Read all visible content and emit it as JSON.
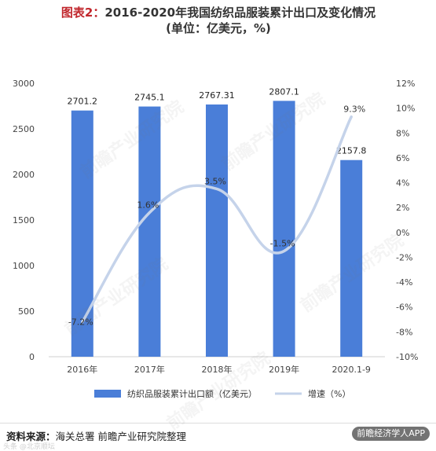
{
  "header": {
    "title_prefix": "图表2：",
    "title_main": "2016-2020年我国纺织品服装累计出口及变化情况",
    "title_unit": "(单位：亿美元，%)"
  },
  "footer": {
    "source_label": "资料来源：",
    "source_text": "海关总署  前瞻产业研究院整理",
    "badge_text": "前瞻经济学人APP",
    "corner_mark": "头条 @北京顺坛"
  },
  "watermark": {
    "text": "前瞻产业研究院"
  },
  "chart_data": {
    "type": "bar+line",
    "categories": [
      "2016年",
      "2017年",
      "2018年",
      "2019年",
      "2020.1-9"
    ],
    "series": [
      {
        "name": "纺织品服装累计出口额（亿美元）",
        "type": "bar",
        "axis": "left",
        "values": [
          2701.2,
          2745.1,
          2767.31,
          2807.1,
          2157.8
        ],
        "labels": [
          "2701.2",
          "2745.1",
          "2767.31",
          "2807.1",
          "2157.8"
        ],
        "color": "#4a7ed8"
      },
      {
        "name": "增速（%）",
        "type": "line",
        "axis": "right",
        "values": [
          -7.2,
          1.6,
          3.5,
          -1.5,
          9.3
        ],
        "labels": [
          "-7.2%",
          "1.6%",
          "3.5%",
          "-1.5%",
          "9.3%"
        ],
        "color": "#c5d3ea"
      }
    ],
    "y_left": {
      "ylim": [
        0,
        3000
      ],
      "ticks": [
        0,
        500,
        1000,
        1500,
        2000,
        2500,
        3000
      ],
      "tick_labels": [
        "0",
        "500",
        "1000",
        "1500",
        "2000",
        "2500",
        "3000"
      ]
    },
    "y_right": {
      "ylim": [
        -10,
        12
      ],
      "ticks": [
        -10,
        -8,
        -6,
        -4,
        -2,
        0,
        2,
        4,
        6,
        8,
        10,
        12
      ],
      "tick_labels": [
        "-10%",
        "-8%",
        "-6%",
        "-4%",
        "-2%",
        "0%",
        "2%",
        "4%",
        "6%",
        "8%",
        "10%",
        "12%"
      ]
    },
    "grid": false,
    "legend": "bottom"
  }
}
